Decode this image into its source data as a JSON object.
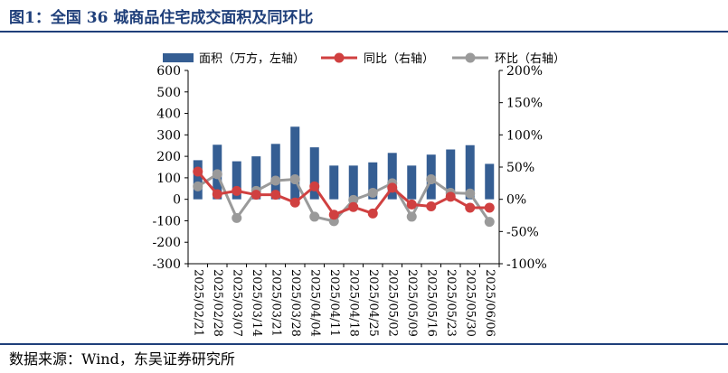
{
  "title": "图1：全国 36 城商品住宅成交面积及同环比",
  "source": "数据来源：Wind，东吴证券研究所",
  "chart_data": {
    "type": "bar",
    "categories": [
      "2025/02/21",
      "2025/02/28",
      "2025/03/07",
      "2025/03/14",
      "2025/03/21",
      "2025/03/28",
      "2025/04/04",
      "2025/04/11",
      "2025/04/18",
      "2025/04/25",
      "2025/05/02",
      "2025/05/09",
      "2025/05/16",
      "2025/05/23",
      "2025/05/30",
      "2025/06/06"
    ],
    "series": [
      {
        "name": "面积（万方，左轴）",
        "type": "bar",
        "axis": "left",
        "color": "#355e93",
        "values": [
          182,
          254,
          177,
          200,
          258,
          338,
          242,
          157,
          157,
          172,
          216,
          157,
          208,
          232,
          252,
          165
        ]
      },
      {
        "name": "同比（右轴）",
        "type": "line",
        "axis": "right",
        "color": "#d04040",
        "values": [
          43,
          8,
          13,
          7,
          7,
          -5,
          20,
          -24,
          -12,
          -22,
          18,
          -8,
          -11,
          4,
          -13,
          -13
        ]
      },
      {
        "name": "环比（右轴）",
        "type": "line",
        "axis": "right",
        "color": "#9a9a9a",
        "values": [
          20,
          39,
          -29,
          13,
          29,
          31,
          -27,
          -34,
          -1,
          10,
          25,
          -27,
          31,
          10,
          9,
          -35
        ]
      }
    ],
    "y_left": {
      "min": -300,
      "max": 600,
      "step": 100,
      "ticks": [
        "-300",
        "-200",
        "-100",
        "0",
        "100",
        "200",
        "300",
        "400",
        "500",
        "600"
      ]
    },
    "y_right": {
      "min": -100,
      "max": 200,
      "step": 50,
      "ticks": [
        "-100%",
        "-50%",
        "0%",
        "50%",
        "100%",
        "150%",
        "200%"
      ]
    },
    "legend_position": "top",
    "grid": false
  }
}
